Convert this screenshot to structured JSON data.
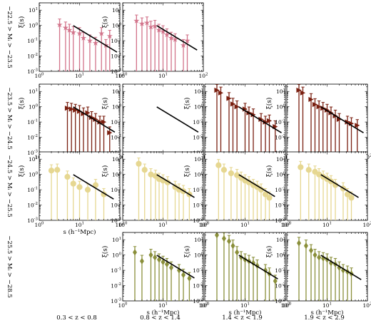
{
  "chart_data": {
    "type": "scatter",
    "description_axes": {
      "x_scale": "log",
      "y_scale": "log",
      "xlim": [
        1,
        100
      ],
      "ylim": [
        0.001,
        30
      ],
      "x_ticks": [
        1,
        10,
        100
      ],
      "y_ticks": [
        0.001,
        0.01,
        0.1,
        1,
        10
      ]
    },
    "ylabel": "ξ(s)",
    "xlabel": "s (h⁻¹Mpc)",
    "tick_labels": {
      "x": [
        "10⁰",
        "10¹",
        "10²"
      ],
      "y": [
        "10⁻³",
        "10⁻²",
        "10⁻¹",
        "10⁰",
        "10¹"
      ]
    },
    "columns": [
      "0.3 < z < 0.8",
      "0.8 < z < 1.4",
      "1.4 < z < 1.9",
      "1.9 < z < 2.9"
    ],
    "rows": [
      {
        "label": "−22.5 > Mᵢ > −23.5",
        "color": "#d2738a",
        "marker": "star"
      },
      {
        "label": "−23.5 > Mᵢ > −24.5",
        "color": "#7a1f10",
        "marker": "triangle-right"
      },
      {
        "label": "−24.5 > Mᵢ > −25.5",
        "color": "#e6d791",
        "marker": "circle"
      },
      {
        "label": "−25.5 > Mᵢ > −28.5",
        "color": "#8a8f3a",
        "marker": "diamond"
      }
    ],
    "panels": [
      {
        "row": 0,
        "col": 0,
        "points": [
          [
            3.2,
            1.1
          ],
          [
            4.5,
            0.7
          ],
          [
            5.6,
            0.5
          ],
          [
            7.0,
            0.35
          ],
          [
            10,
            0.3
          ],
          [
            12.5,
            0.15
          ],
          [
            18,
            0.1
          ],
          [
            25,
            0.07
          ],
          [
            35,
            0.3
          ],
          [
            45,
            0.05
          ],
          [
            56,
            0.2
          ]
        ],
        "fit": {
          "amp": 0.55,
          "slope": -1.6,
          "xr": [
            7,
            85
          ]
        }
      },
      {
        "row": 0,
        "col": 1,
        "points": [
          [
            2.2,
            2.0
          ],
          [
            3.0,
            1.3
          ],
          [
            4.0,
            1.5
          ],
          [
            5.0,
            0.8
          ],
          [
            6.3,
            0.9
          ],
          [
            7.9,
            0.5
          ],
          [
            10,
            0.4
          ],
          [
            12.5,
            0.25
          ],
          [
            16,
            0.15
          ],
          [
            20,
            0.12
          ],
          [
            32,
            0.05
          ],
          [
            40,
            0.1
          ]
        ],
        "fit": {
          "amp": 0.55,
          "slope": -1.6,
          "xr": [
            7,
            70
          ]
        }
      },
      {
        "row": 1,
        "col": 0,
        "points": [
          [
            5.0,
            0.8
          ],
          [
            6.3,
            0.7
          ],
          [
            7.9,
            0.6
          ],
          [
            10,
            0.5
          ],
          [
            12.5,
            0.35
          ],
          [
            16,
            0.4
          ],
          [
            20,
            0.2
          ],
          [
            25,
            0.15
          ],
          [
            32,
            0.1
          ],
          [
            40,
            0.1
          ],
          [
            56,
            0.02
          ]
        ],
        "fit": {
          "amp": 0.55,
          "slope": -1.6,
          "xr": [
            7,
            75
          ]
        }
      },
      {
        "row": 1,
        "col": 1,
        "points": [],
        "fit": {
          "amp": 0.55,
          "slope": -1.6,
          "xr": [
            7,
            75
          ]
        }
      },
      {
        "row": 1,
        "col": 2,
        "points": [
          [
            2.0,
            12
          ],
          [
            2.5,
            8
          ],
          [
            4.0,
            3.5
          ],
          [
            5.0,
            1.5
          ],
          [
            6.3,
            1.0
          ],
          [
            10,
            0.7
          ],
          [
            12.5,
            0.4
          ],
          [
            16,
            0.3
          ],
          [
            25,
            0.15
          ],
          [
            32,
            0.1
          ],
          [
            40,
            0.12
          ],
          [
            56,
            0.05
          ]
        ],
        "fit": {
          "amp": 0.55,
          "slope": -1.6,
          "xr": [
            7,
            80
          ]
        }
      },
      {
        "row": 1,
        "col": 3,
        "points": [
          [
            2.0,
            12
          ],
          [
            2.5,
            8
          ],
          [
            4.0,
            3
          ],
          [
            5.0,
            1.4
          ],
          [
            6.3,
            1.0
          ],
          [
            7.9,
            0.8
          ],
          [
            10,
            0.6
          ],
          [
            12.5,
            0.4
          ],
          [
            16,
            0.25
          ],
          [
            20,
            0.15
          ],
          [
            32,
            0.1
          ],
          [
            40,
            0.08
          ],
          [
            56,
            0.06
          ]
        ],
        "fit": {
          "amp": 0.55,
          "slope": -1.6,
          "xr": [
            7,
            80
          ]
        }
      },
      {
        "row": 2,
        "col": 0,
        "points": [
          [
            2.0,
            1.8
          ],
          [
            2.8,
            2.0
          ],
          [
            5.0,
            0.7
          ],
          [
            7.0,
            0.25
          ],
          [
            10,
            0.15
          ],
          [
            16,
            0.1
          ],
          [
            25,
            0.2
          ],
          [
            40,
            0.05
          ]
        ],
        "fit": {
          "amp": 0.55,
          "slope": -1.6,
          "xr": [
            7,
            70
          ]
        }
      },
      {
        "row": 2,
        "col": 1,
        "points": [
          [
            2.5,
            5
          ],
          [
            3.5,
            2
          ],
          [
            5.0,
            1.0
          ],
          [
            6.5,
            0.8
          ],
          [
            8.0,
            0.5
          ],
          [
            10,
            0.4
          ],
          [
            13,
            0.3
          ],
          [
            20,
            0.15
          ],
          [
            25,
            0.1
          ],
          [
            32,
            0.08
          ],
          [
            45,
            0.05
          ]
        ],
        "fit": {
          "amp": 0.55,
          "slope": -1.6,
          "xr": [
            7,
            60
          ]
        }
      },
      {
        "row": 2,
        "col": 2,
        "points": [
          [
            2.2,
            4
          ],
          [
            3.0,
            2.0
          ],
          [
            4.5,
            1.2
          ],
          [
            6.3,
            0.9
          ],
          [
            8.0,
            0.6
          ],
          [
            10,
            0.4
          ],
          [
            12.5,
            0.3
          ],
          [
            16,
            0.2
          ],
          [
            20,
            0.15
          ],
          [
            25,
            0.1
          ],
          [
            32,
            0.05
          ],
          [
            40,
            0.03
          ]
        ],
        "fit": {
          "amp": 0.55,
          "slope": -1.6,
          "xr": [
            7,
            55
          ]
        }
      },
      {
        "row": 2,
        "col": 3,
        "points": [
          [
            2.2,
            3
          ],
          [
            3.5,
            2.0
          ],
          [
            5.0,
            1.5
          ],
          [
            6.3,
            1.0
          ],
          [
            8.0,
            0.7
          ],
          [
            10,
            0.5
          ],
          [
            12.5,
            0.35
          ],
          [
            16,
            0.2
          ],
          [
            25,
            0.12
          ],
          [
            32,
            0.05
          ],
          [
            40,
            0.03
          ]
        ],
        "fit": {
          "amp": 0.55,
          "slope": -1.6,
          "xr": [
            7,
            60
          ]
        }
      },
      {
        "row": 3,
        "col": 1,
        "points": [
          [
            2.0,
            1.5
          ],
          [
            3.0,
            0.4
          ],
          [
            5.0,
            1.0
          ],
          [
            6.3,
            0.7
          ],
          [
            8.0,
            0.5
          ],
          [
            10,
            0.35
          ],
          [
            12.5,
            0.25
          ],
          [
            16,
            0.15
          ],
          [
            25,
            0.1
          ],
          [
            32,
            0.05
          ],
          [
            45,
            0.03
          ]
        ],
        "fit": {
          "amp": 0.55,
          "slope": -1.6,
          "xr": [
            7,
            60
          ]
        }
      },
      {
        "row": 3,
        "col": 2,
        "points": [
          [
            2.0,
            20
          ],
          [
            3.0,
            12
          ],
          [
            4.0,
            8
          ],
          [
            5.0,
            4
          ],
          [
            6.3,
            1.5
          ],
          [
            8.0,
            0.7
          ],
          [
            10,
            0.5
          ],
          [
            12.5,
            0.4
          ],
          [
            16,
            0.3
          ],
          [
            20,
            0.2
          ],
          [
            32,
            0.1
          ],
          [
            40,
            0.06
          ],
          [
            56,
            0.02
          ]
        ],
        "fit": {
          "amp": 0.55,
          "slope": -1.6,
          "xr": [
            7,
            65
          ]
        }
      },
      {
        "row": 3,
        "col": 3,
        "points": [
          [
            2.0,
            6
          ],
          [
            3.0,
            4
          ],
          [
            4.0,
            2
          ],
          [
            5.0,
            1.0
          ],
          [
            6.3,
            0.7
          ],
          [
            8.0,
            0.6
          ],
          [
            10,
            0.5
          ],
          [
            12.5,
            0.3
          ],
          [
            16,
            0.25
          ],
          [
            20,
            0.15
          ],
          [
            25,
            0.1
          ],
          [
            32,
            0.08
          ],
          [
            40,
            0.06
          ]
        ],
        "fit": {
          "amp": 0.55,
          "slope": -1.6,
          "xr": [
            7,
            70
          ]
        }
      }
    ]
  }
}
